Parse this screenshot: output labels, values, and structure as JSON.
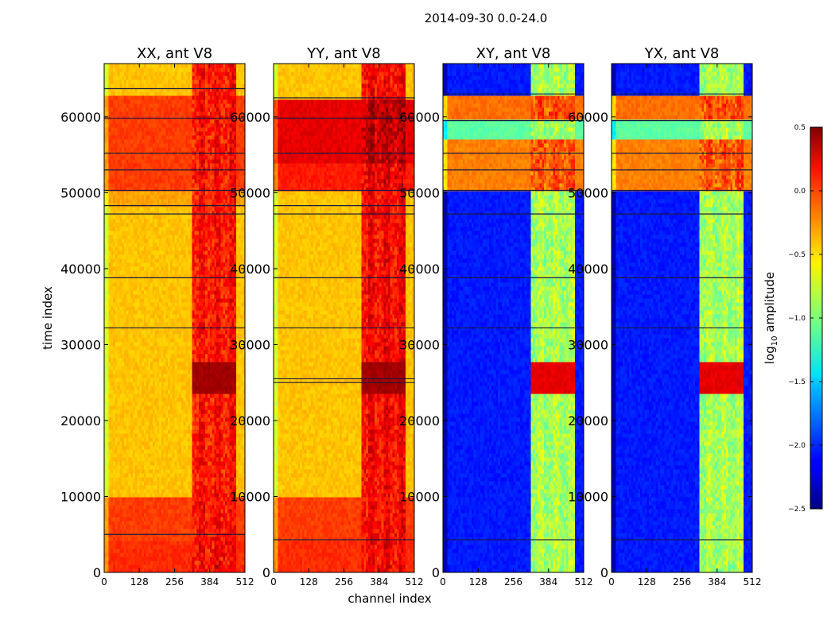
{
  "chart_data": {
    "type": "heatmap",
    "suptitle": "2014-09-30 0.0-24.0",
    "xlabel": "channel index",
    "ylabel": "time index",
    "x_range": [
      0,
      512
    ],
    "y_range": [
      0,
      67000
    ],
    "x_ticks": [
      "0",
      "128",
      "256",
      "384",
      "512"
    ],
    "y_ticks": [
      {
        "value": 0,
        "label": "0"
      },
      {
        "value": 10000,
        "label": "10000"
      },
      {
        "value": 20000,
        "label": "20000"
      },
      {
        "value": 30000,
        "label": "30000"
      },
      {
        "value": 40000,
        "label": "40000"
      },
      {
        "value": 50000,
        "label": "50000"
      },
      {
        "value": 60000,
        "label": "60000"
      }
    ],
    "colormap": "jet",
    "colorbar": {
      "label": "log10 amplitude",
      "label_base": "log",
      "label_sub": "10",
      "label_rest": " amplitude",
      "range": [
        -2.5,
        0.5
      ],
      "ticks": [
        {
          "value": 0.5,
          "label": "0.5"
        },
        {
          "value": 0.0,
          "label": "0.0"
        },
        {
          "value": -0.5,
          "label": "−0.5"
        },
        {
          "value": -1.0,
          "label": "−1.0"
        },
        {
          "value": -1.5,
          "label": "−1.5"
        },
        {
          "value": -2.0,
          "label": "−2.0"
        },
        {
          "value": -2.5,
          "label": "−2.5"
        }
      ]
    },
    "panels": [
      {
        "title": "XX, ant V8",
        "base": -0.45,
        "bands": [
          [
            0,
            4300,
            0.0
          ],
          [
            4300,
            9800,
            -0.05
          ],
          [
            48000,
            50500,
            -0.35
          ],
          [
            50500,
            63000,
            -0.05
          ]
        ],
        "rfi_level": -0.05,
        "burst_level": 0.4,
        "flag_rows": [
          5000,
          32200,
          38800,
          47200,
          48300,
          50300,
          53000,
          55200,
          59800,
          63700
        ]
      },
      {
        "title": "YY, ant V8",
        "base": -0.45,
        "bands": [
          [
            0,
            4300,
            0.0
          ],
          [
            4300,
            9800,
            -0.05
          ],
          [
            50500,
            54000,
            0.05
          ],
          [
            54000,
            62500,
            0.2
          ]
        ],
        "rfi_level": 0.0,
        "burst_level": 0.4,
        "flag_rows": [
          4300,
          25000,
          25500,
          32200,
          38800,
          47200,
          48300,
          50300,
          55200,
          59800,
          62500
        ]
      },
      {
        "title": "XY, ant V8",
        "base": -2.05,
        "bands": [
          [
            50500,
            57000,
            -0.25
          ],
          [
            57000,
            59500,
            -1.1
          ],
          [
            59500,
            63000,
            -0.2
          ]
        ],
        "rfi_level": -1.0,
        "burst_level": 0.2,
        "flag_rows": [
          4300,
          32200,
          38800,
          47200,
          50300,
          53000,
          55200,
          59500,
          63000
        ]
      },
      {
        "title": "YX, ant V8",
        "base": -2.05,
        "bands": [
          [
            50500,
            57000,
            -0.25
          ],
          [
            57000,
            59500,
            -1.1
          ],
          [
            59500,
            63000,
            -0.2
          ]
        ],
        "rfi_level": -1.0,
        "burst_level": 0.2,
        "flag_rows": [
          4300,
          32200,
          38800,
          47200,
          50300,
          53000,
          55200,
          59500,
          63000
        ]
      }
    ],
    "rfi_channel_range": [
      320,
      480
    ],
    "burst_time_range": [
      23500,
      28000
    ]
  }
}
